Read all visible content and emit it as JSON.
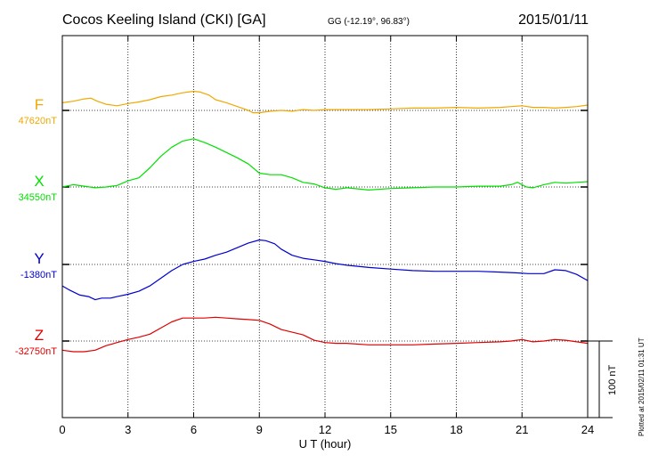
{
  "chart_data": {
    "type": "line",
    "title": "Cocos Keeling Island (CKI)  [GA]",
    "coords": "GG (-12.19°,  96.83°)",
    "date": "2015/01/11",
    "xlabel": "U T (hour)",
    "xlim": [
      0,
      24
    ],
    "x_ticks": [
      "0",
      "3",
      "6",
      "9",
      "12",
      "15",
      "18",
      "21",
      "24"
    ],
    "scale_label": "100 nT",
    "plotted_note": "Plotted at 2015/02/11 01:31  UT",
    "grid": "dotted",
    "series": [
      {
        "name": "F",
        "baseline_label": "47620nT",
        "color": "#f0a800",
        "x": [
          0,
          0.5,
          1,
          1.3,
          1.6,
          2,
          2.5,
          3,
          3.5,
          4,
          4.5,
          5,
          5.5,
          6,
          6.3,
          6.7,
          7,
          7.5,
          8,
          8.5,
          8.7,
          9,
          9.5,
          10,
          10.5,
          11,
          11.5,
          12,
          13,
          14,
          15,
          16,
          17,
          18,
          19,
          20,
          20.5,
          21,
          21.5,
          22,
          22.5,
          23,
          23.5,
          24
        ],
        "y": [
          10,
          12,
          15,
          16,
          12,
          8,
          6,
          9,
          11,
          14,
          18,
          20,
          23,
          25,
          24,
          20,
          14,
          10,
          5,
          0,
          -3,
          -3,
          -1,
          0,
          -1,
          1,
          0,
          1,
          1,
          1,
          2,
          3,
          3,
          4,
          3,
          4,
          5,
          6,
          4,
          4,
          3,
          4,
          5,
          7
        ]
      },
      {
        "name": "X",
        "baseline_label": "34550nT",
        "color": "#00e000",
        "x": [
          0,
          0.5,
          1,
          1.5,
          2,
          2.5,
          3,
          3.5,
          4,
          4.5,
          5,
          5.5,
          6,
          6.5,
          7,
          7.5,
          8,
          8.5,
          9,
          9.5,
          10,
          10.5,
          11,
          11.5,
          12,
          12.5,
          13,
          14,
          15,
          16,
          17,
          18,
          19,
          20,
          20.5,
          20.8,
          21.2,
          21.5,
          22,
          22.5,
          23,
          23.5,
          24
        ],
        "y": [
          0,
          3,
          1,
          -1,
          0,
          2,
          8,
          12,
          25,
          40,
          52,
          60,
          63,
          58,
          52,
          45,
          38,
          30,
          18,
          16,
          16,
          12,
          6,
          4,
          -1,
          -3,
          -1,
          -4,
          -2,
          -1,
          0,
          0,
          1,
          1,
          3,
          6,
          0,
          -1,
          3,
          6,
          5,
          6,
          7
        ]
      },
      {
        "name": "Y",
        "baseline_label": "-1380nT",
        "color": "#0000d0",
        "x": [
          0,
          0.3,
          0.8,
          1.2,
          1.5,
          1.8,
          2.2,
          2.5,
          3,
          3.5,
          4,
          4.5,
          5,
          5.5,
          6,
          6.5,
          7,
          7.5,
          8,
          8.5,
          9,
          9.3,
          9.7,
          10,
          10.5,
          11,
          11.5,
          12,
          12.5,
          13,
          14,
          15,
          16,
          17,
          18,
          19,
          20,
          20.8,
          21.3,
          22,
          22.5,
          23,
          23.5,
          24
        ],
        "y": [
          -28,
          -33,
          -40,
          -42,
          -46,
          -44,
          -44,
          -42,
          -39,
          -35,
          -28,
          -18,
          -8,
          0,
          4,
          7,
          12,
          16,
          22,
          28,
          32,
          31,
          27,
          20,
          12,
          8,
          6,
          4,
          1,
          -1,
          -4,
          -6,
          -8,
          -9,
          -9,
          -9,
          -10,
          -11,
          -12,
          -12,
          -7,
          -8,
          -13,
          -21
        ]
      },
      {
        "name": "Z",
        "baseline_label": "-32750nT",
        "color": "#e00000",
        "x": [
          0,
          0.5,
          1,
          1.5,
          2,
          2.5,
          3,
          3.5,
          4,
          4.5,
          5,
          5.5,
          6,
          6.5,
          7,
          7.5,
          8,
          8.5,
          9,
          9.5,
          10,
          11,
          11.5,
          12,
          12.5,
          13,
          14,
          15,
          16,
          17,
          18,
          19,
          20,
          20.5,
          21,
          21.5,
          22,
          22.5,
          23,
          23.5,
          24
        ],
        "y": [
          -12,
          -14,
          -14,
          -12,
          -6,
          -2,
          2,
          5,
          9,
          17,
          25,
          30,
          30,
          30,
          31,
          30,
          29,
          28,
          27,
          22,
          15,
          8,
          1,
          -2,
          -3,
          -3,
          -5,
          -5,
          -5,
          -4,
          -3,
          -2,
          -1,
          0,
          2,
          -1,
          0,
          2,
          1,
          -1,
          -3
        ]
      }
    ]
  }
}
